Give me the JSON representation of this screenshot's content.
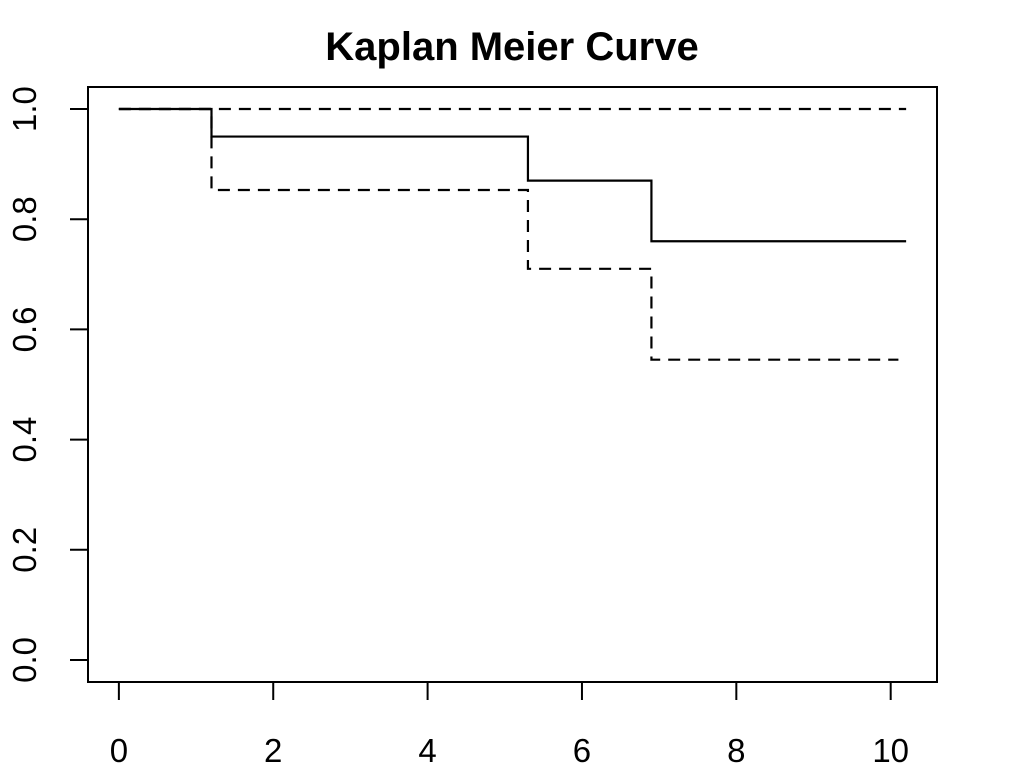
{
  "chart_data": {
    "type": "line",
    "title": "Kaplan Meier Curve",
    "xlabel": "",
    "ylabel": "",
    "xlim": [
      -0.4,
      10.6
    ],
    "ylim": [
      -0.04,
      1.04
    ],
    "x_ticks": [
      0,
      2,
      4,
      6,
      8,
      10
    ],
    "x_tick_labels": [
      "0",
      "2",
      "4",
      "6",
      "8",
      "10"
    ],
    "y_ticks": [
      0.0,
      0.2,
      0.4,
      0.6,
      0.8,
      1.0
    ],
    "y_tick_labels": [
      "0.0",
      "0.2",
      "0.4",
      "0.6",
      "0.8",
      "1.0"
    ],
    "grid": false,
    "series": [
      {
        "style": "solid",
        "step": true,
        "x": [
          0,
          1.2,
          5.3,
          6.9,
          10.2
        ],
        "y": [
          1.0,
          0.95,
          0.87,
          0.76,
          0.76
        ]
      },
      {
        "style": "dashed",
        "step": true,
        "x": [
          0,
          1.2,
          5.3,
          6.9,
          10.2
        ],
        "y": [
          1.0,
          1.0,
          1.0,
          1.0,
          1.0
        ]
      },
      {
        "style": "dashed",
        "step": true,
        "x": [
          0,
          1.2,
          5.3,
          6.9,
          10.1
        ],
        "y": [
          1.0,
          0.853,
          0.71,
          0.545,
          0.545
        ]
      }
    ]
  }
}
